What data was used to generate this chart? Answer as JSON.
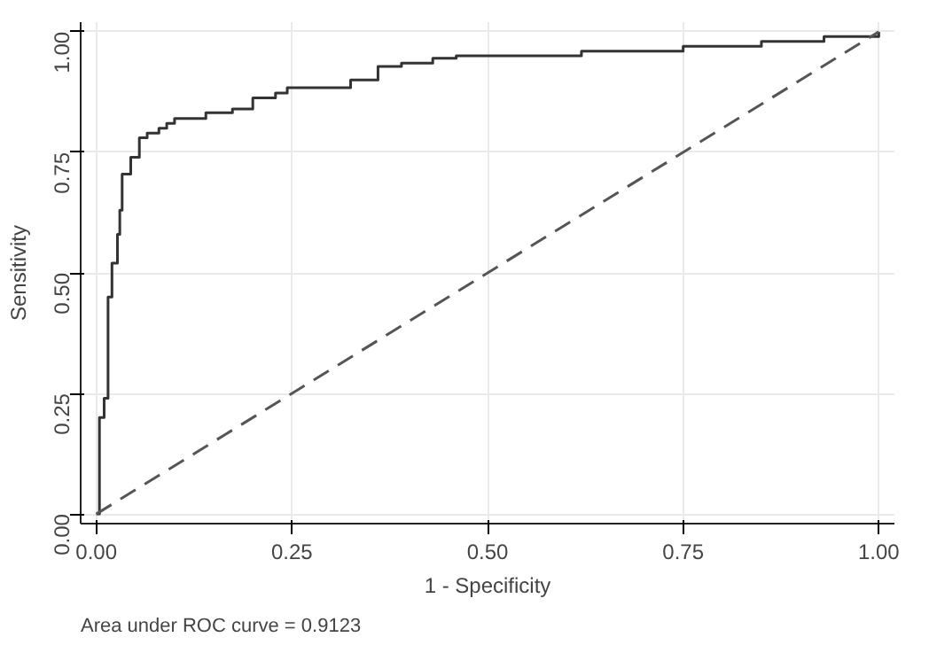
{
  "chart_data": {
    "type": "step",
    "xlabel": "1 - Specificity",
    "ylabel": "Sensitivity",
    "xlim": [
      -0.02,
      1.02
    ],
    "ylim": [
      -0.02,
      1.02
    ],
    "xticks": [
      {
        "value": 0,
        "label": "0.00"
      },
      {
        "value": 0.25,
        "label": "0.25"
      },
      {
        "value": 0.5,
        "label": "0.50"
      },
      {
        "value": 0.75,
        "label": "0.75"
      },
      {
        "value": 1,
        "label": "1.00"
      }
    ],
    "yticks": [
      {
        "value": 0,
        "label": "0.00"
      },
      {
        "value": 0.25,
        "label": "0.25"
      },
      {
        "value": 0.5,
        "label": "0.50"
      },
      {
        "value": 0.75,
        "label": "0.75"
      },
      {
        "value": 1,
        "label": "1.00"
      }
    ],
    "grid": true,
    "series": [
      {
        "color": "#333333",
        "line_style": "solid",
        "x": [
          0,
          0.004,
          0.01,
          0.015,
          0.02,
          0.027,
          0.03,
          0.033,
          0.044,
          0.055,
          0.065,
          0.08,
          0.09,
          0.1,
          0.14,
          0.174,
          0.2,
          0.229,
          0.244,
          0.325,
          0.36,
          0.39,
          0.43,
          0.46,
          0.62,
          0.75,
          0.85,
          0.93,
          1.0
        ],
        "values": [
          0,
          0.2,
          0.24,
          0.45,
          0.52,
          0.58,
          0.63,
          0.705,
          0.74,
          0.78,
          0.79,
          0.8,
          0.81,
          0.82,
          0.832,
          0.84,
          0.863,
          0.873,
          0.884,
          0.9,
          0.928,
          0.935,
          0.945,
          0.95,
          0.96,
          0.97,
          0.98,
          0.99,
          1.0
        ]
      },
      {
        "type": "line",
        "color": "#555555",
        "line_style": "dashed",
        "x": [
          0,
          1
        ],
        "values": [
          0,
          1
        ]
      }
    ],
    "annotations": [
      "Area under ROC curve = 0.9123"
    ]
  }
}
